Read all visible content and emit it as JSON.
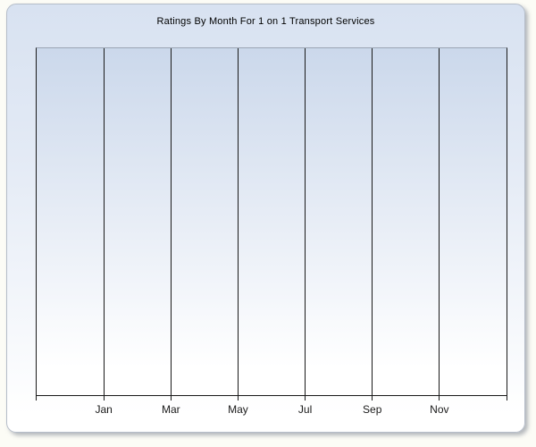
{
  "window": {
    "title": "Ratings By Month For 1 on 1 Transport Services"
  },
  "axis": {
    "tick_labels": [
      "Jan",
      "Mar",
      "May",
      "Jul",
      "Sep",
      "Nov"
    ]
  },
  "chart_data": {
    "type": "line",
    "title": "Ratings By Month For 1 on 1 Transport Services",
    "categories": [
      "Jan",
      "Mar",
      "May",
      "Jul",
      "Sep",
      "Nov"
    ],
    "series": [],
    "xlabel": "",
    "ylabel": "",
    "y_tick_labels": [],
    "grid": "vertical gridlines only, 8 evenly spaced vertical lines (plot edges plus 6 labeled ticks)",
    "legend": "none",
    "note": "plot area is empty - no data points rendered"
  },
  "colors": {
    "page_bg": "#fcfcf6",
    "window_bg_top": "#d8e2f1",
    "window_bg_bottom": "#ffffff",
    "window_border": "#b5bdc9",
    "plot_bg_top": "#cbd8eb",
    "plot_top_border": "#9aa4b4",
    "grid_line": "#1a1a1a",
    "title_text": "#000000",
    "label_text": "#1a1a1a"
  }
}
